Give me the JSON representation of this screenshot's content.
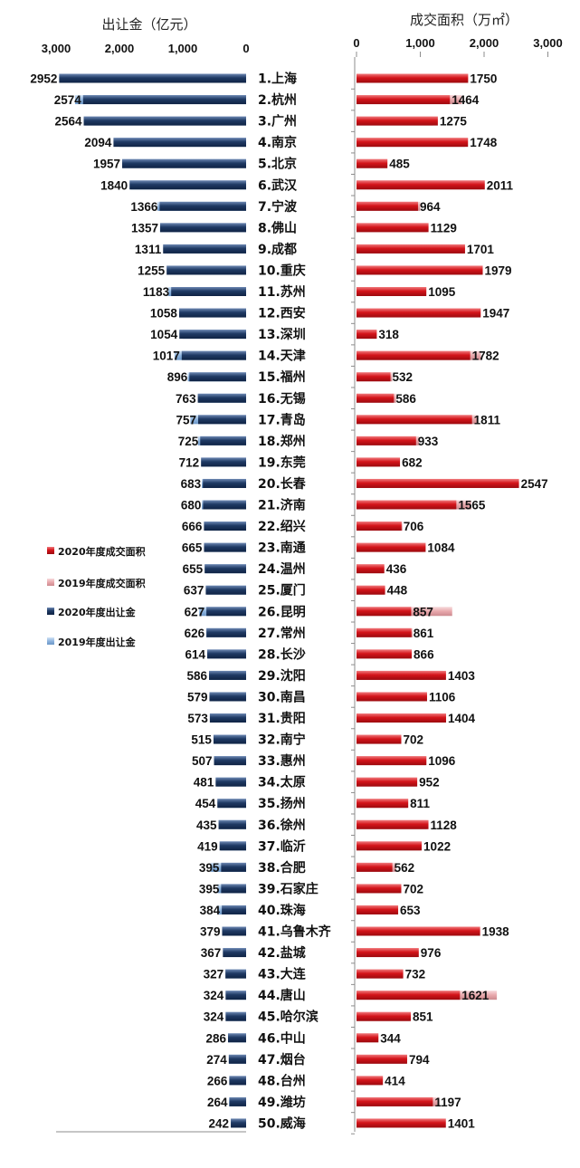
{
  "chart_data": {
    "type": "bar",
    "left_panel": {
      "title": "出让金（亿元）",
      "ticks": [
        "3,000",
        "2,000",
        "1,000",
        "0"
      ],
      "xlim": [
        0,
        3000
      ],
      "series_2020": "2020年度出让金",
      "series_2019": "2019年度出让金",
      "values_2020": [
        2952,
        2574,
        2564,
        2094,
        1957,
        1840,
        1366,
        1357,
        1311,
        1255,
        1183,
        1058,
        1054,
        1017,
        896,
        763,
        757,
        725,
        712,
        683,
        680,
        666,
        665,
        655,
        637,
        627,
        626,
        614,
        586,
        579,
        573,
        515,
        507,
        481,
        454,
        435,
        419,
        395,
        395,
        384,
        379,
        367,
        327,
        324,
        324,
        286,
        274,
        266,
        264,
        242
      ],
      "values_2019_approx": [
        2900,
        2700,
        2550,
        2000,
        1950,
        1820,
        1400,
        1360,
        1300,
        1250,
        1230,
        1050,
        1000,
        1130,
        920,
        750,
        880,
        760,
        700,
        700,
        700,
        650,
        660,
        640,
        620,
        740,
        630,
        600,
        580,
        570,
        560,
        500,
        500,
        470,
        440,
        430,
        400,
        560,
        450,
        450,
        370,
        360,
        320,
        310,
        320,
        280,
        270,
        260,
        270,
        240
      ]
    },
    "right_panel": {
      "title": "成交面积（万㎡）",
      "ticks": [
        "0",
        "1,000",
        "2,000",
        "3,000"
      ],
      "xlim": [
        0,
        3000
      ],
      "series_2020": "2020年度成交面积",
      "series_2019": "2019年度成交面积",
      "values_2020": [
        1750,
        1464,
        1275,
        1748,
        485,
        2011,
        964,
        1129,
        1701,
        1979,
        1095,
        1947,
        318,
        1782,
        532,
        586,
        1811,
        933,
        682,
        2547,
        1565,
        706,
        1084,
        436,
        448,
        857,
        861,
        866,
        1403,
        1106,
        1404,
        702,
        1096,
        952,
        811,
        1128,
        1022,
        562,
        702,
        653,
        1938,
        976,
        732,
        1621,
        851,
        344,
        794,
        414,
        1197,
        1401
      ],
      "values_2019_approx": [
        1700,
        1650,
        1200,
        1700,
        480,
        1950,
        1000,
        1100,
        1700,
        1950,
        1050,
        1900,
        300,
        1950,
        560,
        620,
        1900,
        980,
        650,
        2500,
        1800,
        720,
        1050,
        420,
        430,
        1500,
        880,
        850,
        1350,
        1080,
        1380,
        690,
        1080,
        940,
        800,
        1100,
        1000,
        620,
        680,
        640,
        1880,
        950,
        720,
        2200,
        830,
        340,
        780,
        400,
        1300,
        1380
      ]
    },
    "categories": [
      "1.上海",
      "2.杭州",
      "3.广州",
      "4.南京",
      "5.北京",
      "6.武汉",
      "7.宁波",
      "8.佛山",
      "9.成都",
      "10.重庆",
      "11.苏州",
      "12.西安",
      "13.深圳",
      "14.天津",
      "15.福州",
      "16.无锡",
      "17.青岛",
      "18.郑州",
      "19.东莞",
      "20.长春",
      "21.济南",
      "22.绍兴",
      "23.南通",
      "24.温州",
      "25.厦门",
      "26.昆明",
      "27.常州",
      "28.长沙",
      "29.沈阳",
      "30.南昌",
      "31.贵阳",
      "32.南宁",
      "33.惠州",
      "34.太原",
      "35.扬州",
      "36.徐州",
      "37.临沂",
      "38.合肥",
      "39.石家庄",
      "40.珠海",
      "41.乌鲁木齐",
      "42.盐城",
      "43.大连",
      "44.唐山",
      "45.哈尔滨",
      "46.中山",
      "47.烟台",
      "48.台州",
      "49.潍坊",
      "50.威海"
    ],
    "legend": [
      "2020年度成交面积",
      "2019年度成交面积",
      "2020年度出让金",
      "2019年度出让金"
    ]
  },
  "colors": {
    "red_2020": "#d4141a",
    "red_2019": "#e8a8ac",
    "navy_2020": "#1f3a64",
    "blue_2019": "#8eb4de",
    "axis": "#8c8c8c"
  }
}
